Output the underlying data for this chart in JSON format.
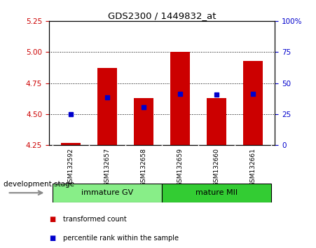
{
  "title": "GDS2300 / 1449832_at",
  "samples": [
    "GSM132592",
    "GSM132657",
    "GSM132658",
    "GSM132659",
    "GSM132660",
    "GSM132661"
  ],
  "bar_bottoms": [
    4.25,
    4.25,
    4.25,
    4.25,
    4.25,
    4.25
  ],
  "bar_tops": [
    4.27,
    4.87,
    4.63,
    5.0,
    4.63,
    4.93
  ],
  "percentile_values": [
    4.5,
    4.635,
    4.555,
    4.665,
    4.655,
    4.665
  ],
  "ylim": [
    4.25,
    5.25
  ],
  "yticks_left": [
    4.25,
    4.5,
    4.75,
    5.0,
    5.25
  ],
  "yticks_right": [
    0,
    25,
    50,
    75,
    100
  ],
  "bar_color": "#cc0000",
  "percentile_color": "#0000cc",
  "left_tick_color": "#cc0000",
  "right_tick_color": "#0000cc",
  "groups": [
    {
      "label": "immature GV",
      "indices": [
        0,
        1,
        2
      ],
      "color": "#88ee88"
    },
    {
      "label": "mature MII",
      "indices": [
        3,
        4,
        5
      ],
      "color": "#33cc33"
    }
  ],
  "dev_stage_label": "development stage",
  "legend_items": [
    {
      "label": "transformed count",
      "color": "#cc0000"
    },
    {
      "label": "percentile rank within the sample",
      "color": "#0000cc"
    }
  ],
  "background_color": "#ffffff",
  "label_area_color": "#cccccc",
  "bar_width": 0.55
}
